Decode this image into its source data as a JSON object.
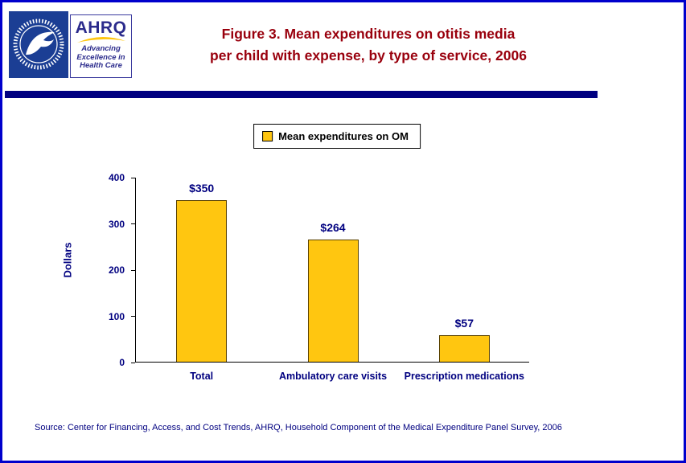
{
  "header": {
    "ahrq": {
      "acronym": "AHRQ",
      "tagline": [
        "Advancing",
        "Excellence in",
        "Health Care"
      ]
    },
    "title_lines": [
      "Figure 3. Mean expenditures on otitis media",
      "per child with expense, by type of service, 2006"
    ]
  },
  "legend": {
    "label": "Mean expenditures on OM"
  },
  "chart_data": {
    "type": "bar",
    "title": "Figure 3. Mean expenditures on otitis media per child with expense, by type of service, 2006",
    "categories": [
      "Total",
      "Ambulatory care visits",
      "Prescription medications"
    ],
    "values": [
      350,
      264,
      57
    ],
    "data_labels": [
      "$350",
      "$264",
      "$57"
    ],
    "xlabel": "",
    "ylabel": "Dollars",
    "ylim": [
      0,
      400
    ],
    "yticks": [
      0,
      100,
      200,
      300,
      400
    ],
    "legend": [
      "Mean expenditures on OM"
    ],
    "legend_position": "top-center",
    "grid": false,
    "bar_color": "#FFC610"
  },
  "footer": {
    "source": "Source: Center for Financing, Access, and Cost Trends, AHRQ, Household Component of the Medical Expenditure Panel Survey, 2006"
  },
  "colors": {
    "title": "#99000D",
    "accent": "#000080",
    "bar_fill": "#FFC610",
    "page_border": "#0000CC",
    "logo_blue": "#1B3E94"
  }
}
